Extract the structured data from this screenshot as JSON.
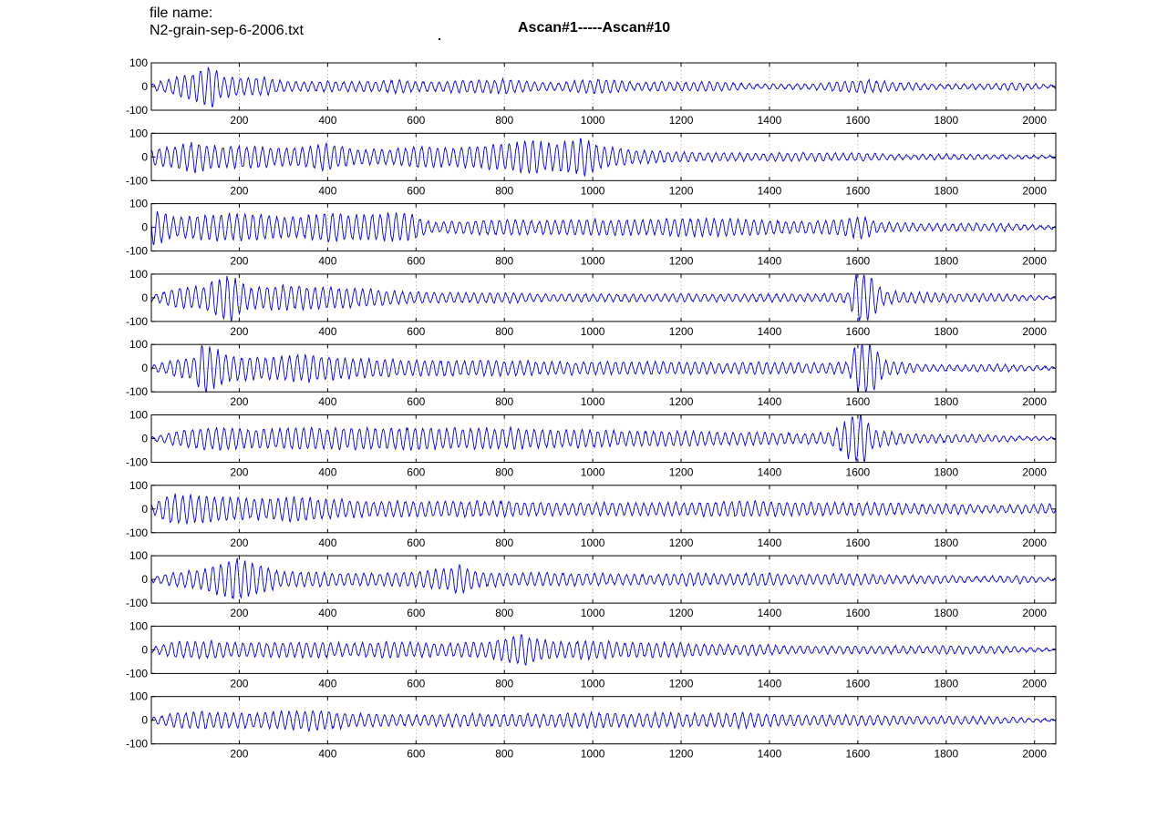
{
  "header": {
    "file_label": "file name:",
    "file_name": "N2-grain-sep-6-2006.txt",
    "title": "Ascan#1-----Ascan#10"
  },
  "chart_data": {
    "type": "line",
    "title": "Ascan#1-----Ascan#10",
    "panel_count": 10,
    "xlim": [
      1,
      2048
    ],
    "ylim": [
      -100,
      100
    ],
    "x_ticks": [
      200,
      400,
      600,
      800,
      1000,
      1200,
      1400,
      1600,
      1800,
      2000
    ],
    "y_ticks": [
      -100,
      0,
      100
    ],
    "grid": true,
    "line_color": "#0000cc",
    "series": [
      {
        "name": "",
        "points": [
          [
            1,
            -10
          ],
          [
            60,
            40
          ],
          [
            100,
            -55
          ],
          [
            140,
            85
          ],
          [
            160,
            -40
          ],
          [
            200,
            35
          ],
          [
            240,
            -40
          ],
          [
            280,
            25
          ],
          [
            320,
            -20
          ],
          [
            400,
            20
          ],
          [
            480,
            -20
          ],
          [
            560,
            25
          ],
          [
            600,
            -20
          ],
          [
            660,
            20
          ],
          [
            720,
            -25
          ],
          [
            760,
            25
          ],
          [
            800,
            -30
          ],
          [
            860,
            20
          ],
          [
            920,
            -15
          ],
          [
            980,
            25
          ],
          [
            1020,
            -30
          ],
          [
            1100,
            15
          ],
          [
            1160,
            -20
          ],
          [
            1200,
            15
          ],
          [
            1260,
            -20
          ],
          [
            1360,
            10
          ],
          [
            1480,
            -10
          ],
          [
            1560,
            20
          ],
          [
            1600,
            -25
          ],
          [
            1620,
            25
          ],
          [
            1700,
            -15
          ],
          [
            1800,
            10
          ],
          [
            1880,
            -10
          ],
          [
            1960,
            15
          ],
          [
            2048,
            -5
          ]
        ]
      },
      {
        "name": "",
        "points": [
          [
            1,
            30
          ],
          [
            60,
            -45
          ],
          [
            100,
            60
          ],
          [
            160,
            -40
          ],
          [
            220,
            45
          ],
          [
            280,
            -35
          ],
          [
            340,
            40
          ],
          [
            400,
            -55
          ],
          [
            460,
            30
          ],
          [
            540,
            -30
          ],
          [
            620,
            45
          ],
          [
            680,
            -35
          ],
          [
            760,
            50
          ],
          [
            800,
            -50
          ],
          [
            860,
            65
          ],
          [
            920,
            -55
          ],
          [
            980,
            75
          ],
          [
            1020,
            -45
          ],
          [
            1100,
            25
          ],
          [
            1200,
            -20
          ],
          [
            1300,
            15
          ],
          [
            1400,
            -15
          ],
          [
            1500,
            15
          ],
          [
            1600,
            -15
          ],
          [
            1700,
            10
          ],
          [
            1800,
            -10
          ],
          [
            1900,
            10
          ],
          [
            2048,
            -5
          ]
        ]
      },
      {
        "name": "",
        "points": [
          [
            1,
            70
          ],
          [
            20,
            -60
          ],
          [
            60,
            40
          ],
          [
            120,
            -50
          ],
          [
            180,
            55
          ],
          [
            240,
            -55
          ],
          [
            280,
            45
          ],
          [
            340,
            -40
          ],
          [
            400,
            60
          ],
          [
            460,
            -50
          ],
          [
            520,
            55
          ],
          [
            580,
            -55
          ],
          [
            640,
            20
          ],
          [
            700,
            -25
          ],
          [
            760,
            30
          ],
          [
            820,
            -30
          ],
          [
            880,
            25
          ],
          [
            960,
            -30
          ],
          [
            1040,
            30
          ],
          [
            1120,
            -30
          ],
          [
            1200,
            35
          ],
          [
            1280,
            -35
          ],
          [
            1360,
            30
          ],
          [
            1440,
            -25
          ],
          [
            1520,
            25
          ],
          [
            1580,
            -35
          ],
          [
            1610,
            45
          ],
          [
            1650,
            -20
          ],
          [
            1740,
            15
          ],
          [
            1820,
            -15
          ],
          [
            1920,
            15
          ],
          [
            2048,
            -5
          ]
        ]
      },
      {
        "name": "",
        "points": [
          [
            1,
            10
          ],
          [
            60,
            -40
          ],
          [
            120,
            45
          ],
          [
            170,
            -90
          ],
          [
            180,
            95
          ],
          [
            220,
            -40
          ],
          [
            300,
            50
          ],
          [
            360,
            -45
          ],
          [
            420,
            40
          ],
          [
            480,
            -35
          ],
          [
            560,
            25
          ],
          [
            640,
            -20
          ],
          [
            720,
            20
          ],
          [
            800,
            -20
          ],
          [
            880,
            15
          ],
          [
            960,
            -15
          ],
          [
            1040,
            15
          ],
          [
            1120,
            -15
          ],
          [
            1200,
            15
          ],
          [
            1300,
            -15
          ],
          [
            1400,
            15
          ],
          [
            1500,
            -15
          ],
          [
            1580,
            20
          ],
          [
            1595,
            -100
          ],
          [
            1605,
            100
          ],
          [
            1615,
            -100
          ],
          [
            1625,
            90
          ],
          [
            1660,
            -25
          ],
          [
            1740,
            20
          ],
          [
            1820,
            -15
          ],
          [
            1920,
            15
          ],
          [
            2048,
            5
          ]
        ]
      },
      {
        "name": "",
        "points": [
          [
            1,
            -10
          ],
          [
            60,
            35
          ],
          [
            100,
            -45
          ],
          [
            110,
            95
          ],
          [
            125,
            -95
          ],
          [
            180,
            50
          ],
          [
            240,
            -45
          ],
          [
            300,
            50
          ],
          [
            360,
            -55
          ],
          [
            400,
            45
          ],
          [
            460,
            -40
          ],
          [
            520,
            35
          ],
          [
            580,
            -30
          ],
          [
            660,
            30
          ],
          [
            740,
            -30
          ],
          [
            820,
            30
          ],
          [
            900,
            -25
          ],
          [
            980,
            25
          ],
          [
            1060,
            -25
          ],
          [
            1140,
            25
          ],
          [
            1220,
            -25
          ],
          [
            1300,
            20
          ],
          [
            1380,
            -25
          ],
          [
            1440,
            20
          ],
          [
            1520,
            -20
          ],
          [
            1580,
            25
          ],
          [
            1595,
            -100
          ],
          [
            1605,
            100
          ],
          [
            1620,
            -100
          ],
          [
            1635,
            100
          ],
          [
            1660,
            -30
          ],
          [
            1740,
            15
          ],
          [
            1820,
            -10
          ],
          [
            1920,
            15
          ],
          [
            2048,
            -5
          ]
        ]
      },
      {
        "name": "",
        "points": [
          [
            1,
            -5
          ],
          [
            60,
            30
          ],
          [
            100,
            -40
          ],
          [
            160,
            45
          ],
          [
            220,
            -40
          ],
          [
            280,
            40
          ],
          [
            340,
            -45
          ],
          [
            400,
            40
          ],
          [
            460,
            -45
          ],
          [
            520,
            40
          ],
          [
            600,
            -45
          ],
          [
            660,
            40
          ],
          [
            740,
            -40
          ],
          [
            820,
            40
          ],
          [
            900,
            -35
          ],
          [
            980,
            35
          ],
          [
            1060,
            -30
          ],
          [
            1140,
            30
          ],
          [
            1220,
            -30
          ],
          [
            1300,
            25
          ],
          [
            1380,
            -25
          ],
          [
            1460,
            20
          ],
          [
            1540,
            -25
          ],
          [
            1595,
            100
          ],
          [
            1605,
            -100
          ],
          [
            1615,
            100
          ],
          [
            1630,
            -40
          ],
          [
            1700,
            20
          ],
          [
            1780,
            -15
          ],
          [
            1880,
            15
          ],
          [
            1960,
            -10
          ],
          [
            2048,
            5
          ]
        ]
      },
      {
        "name": "",
        "points": [
          [
            1,
            -15
          ],
          [
            40,
            60
          ],
          [
            80,
            -55
          ],
          [
            140,
            50
          ],
          [
            200,
            -45
          ],
          [
            260,
            40
          ],
          [
            320,
            -50
          ],
          [
            380,
            40
          ],
          [
            440,
            -35
          ],
          [
            500,
            30
          ],
          [
            580,
            -30
          ],
          [
            660,
            30
          ],
          [
            740,
            -30
          ],
          [
            820,
            30
          ],
          [
            900,
            -25
          ],
          [
            980,
            25
          ],
          [
            1060,
            -25
          ],
          [
            1140,
            25
          ],
          [
            1220,
            -25
          ],
          [
            1300,
            30
          ],
          [
            1380,
            -30
          ],
          [
            1460,
            25
          ],
          [
            1540,
            -25
          ],
          [
            1620,
            25
          ],
          [
            1700,
            -20
          ],
          [
            1800,
            20
          ],
          [
            1880,
            -15
          ],
          [
            1960,
            15
          ],
          [
            2048,
            -20
          ]
        ]
      },
      {
        "name": "",
        "points": [
          [
            1,
            10
          ],
          [
            60,
            -30
          ],
          [
            120,
            40
          ],
          [
            180,
            -80
          ],
          [
            200,
            85
          ],
          [
            240,
            -60
          ],
          [
            300,
            30
          ],
          [
            360,
            -30
          ],
          [
            440,
            25
          ],
          [
            520,
            -25
          ],
          [
            600,
            30
          ],
          [
            660,
            -40
          ],
          [
            700,
            60
          ],
          [
            740,
            -30
          ],
          [
            820,
            25
          ],
          [
            900,
            -25
          ],
          [
            980,
            25
          ],
          [
            1060,
            -20
          ],
          [
            1140,
            20
          ],
          [
            1220,
            -25
          ],
          [
            1300,
            20
          ],
          [
            1380,
            -25
          ],
          [
            1460,
            20
          ],
          [
            1540,
            -20
          ],
          [
            1620,
            20
          ],
          [
            1700,
            -15
          ],
          [
            1800,
            15
          ],
          [
            1880,
            -10
          ],
          [
            1960,
            15
          ],
          [
            2048,
            5
          ]
        ]
      },
      {
        "name": "",
        "points": [
          [
            1,
            -10
          ],
          [
            60,
            35
          ],
          [
            120,
            -35
          ],
          [
            180,
            30
          ],
          [
            240,
            -30
          ],
          [
            300,
            30
          ],
          [
            380,
            -30
          ],
          [
            440,
            25
          ],
          [
            520,
            -30
          ],
          [
            580,
            30
          ],
          [
            640,
            -25
          ],
          [
            700,
            30
          ],
          [
            760,
            -30
          ],
          [
            820,
            55
          ],
          [
            840,
            -65
          ],
          [
            860,
            50
          ],
          [
            920,
            -30
          ],
          [
            980,
            35
          ],
          [
            1020,
            -35
          ],
          [
            1080,
            30
          ],
          [
            1140,
            -30
          ],
          [
            1220,
            25
          ],
          [
            1300,
            -20
          ],
          [
            1380,
            20
          ],
          [
            1460,
            -15
          ],
          [
            1540,
            15
          ],
          [
            1620,
            -15
          ],
          [
            1700,
            15
          ],
          [
            1800,
            -15
          ],
          [
            1900,
            15
          ],
          [
            2048,
            -5
          ]
        ]
      },
      {
        "name": "",
        "points": [
          [
            1,
            10
          ],
          [
            60,
            -30
          ],
          [
            120,
            35
          ],
          [
            180,
            -30
          ],
          [
            240,
            30
          ],
          [
            300,
            -35
          ],
          [
            360,
            40
          ],
          [
            400,
            -35
          ],
          [
            460,
            25
          ],
          [
            520,
            -25
          ],
          [
            600,
            20
          ],
          [
            680,
            -25
          ],
          [
            760,
            25
          ],
          [
            840,
            -25
          ],
          [
            920,
            25
          ],
          [
            1000,
            -30
          ],
          [
            1080,
            25
          ],
          [
            1160,
            -30
          ],
          [
            1240,
            25
          ],
          [
            1320,
            -30
          ],
          [
            1400,
            25
          ],
          [
            1480,
            -20
          ],
          [
            1560,
            20
          ],
          [
            1640,
            -20
          ],
          [
            1720,
            15
          ],
          [
            1800,
            -15
          ],
          [
            1880,
            15
          ],
          [
            1960,
            -10
          ],
          [
            2048,
            5
          ]
        ]
      }
    ]
  }
}
